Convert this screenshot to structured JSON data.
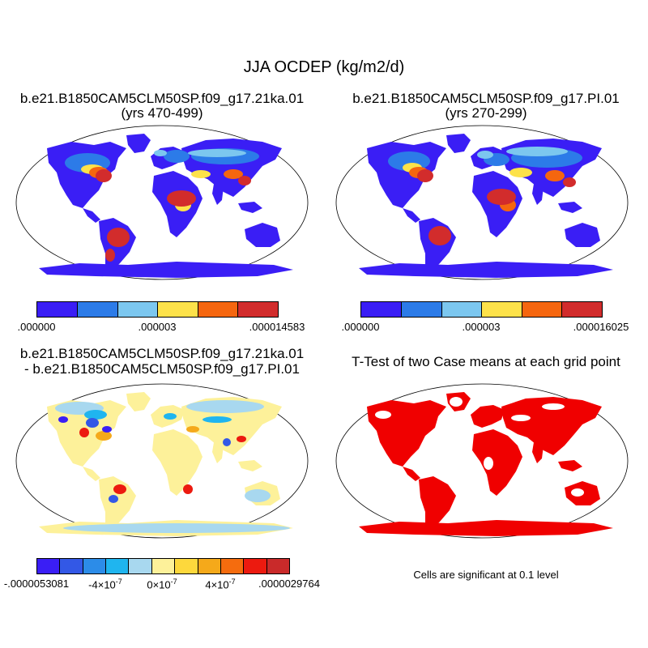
{
  "figure": {
    "title": "JJA OCDEP (kg/m2/d)"
  },
  "panels": [
    {
      "name": "case-a",
      "title_line1": "b.e21.B1850CAM5CLM50SP.f09_g17.21ka.01",
      "title_line2": "(yrs 470-499)",
      "colorbar": {
        "colors": [
          "#3a1ef5",
          "#2c7be8",
          "#7cc7ef",
          "#fde24a",
          "#f5660f",
          "#d22c2c"
        ],
        "labels": [
          ".000000",
          ".000003",
          ".000014583"
        ]
      }
    },
    {
      "name": "case-b",
      "title_line1": "b.e21.B1850CAM5CLM50SP.f09_g17.PI.01",
      "title_line2": "(yrs 270-299)",
      "colorbar": {
        "colors": [
          "#3a1ef5",
          "#2c7be8",
          "#7cc7ef",
          "#fde24a",
          "#f5660f",
          "#d22c2c"
        ],
        "labels": [
          ".000000",
          ".000003",
          ".000016025"
        ]
      }
    },
    {
      "name": "difference",
      "title_line1": "b.e21.B1850CAM5CLM50SP.f09_g17.21ka.01",
      "title_line2": "- b.e21.B1850CAM5CLM50SP.f09_g17.PI.01",
      "colorbar": {
        "colors": [
          "#3a1ef5",
          "#3358e6",
          "#2c8ce8",
          "#1fb5ef",
          "#a8d8ef",
          "#fdf19a",
          "#fdd83c",
          "#f5a91a",
          "#f56c0e",
          "#ec1a0f",
          "#c92a2a"
        ],
        "labels": [
          "-.0000053081",
          "-4×10",
          "0×10",
          "4×10",
          ".0000029764"
        ],
        "exponent": "-7"
      }
    },
    {
      "name": "t-test",
      "title_line1": "T-Test of two Case means at each grid point",
      "note": "Cells are significant at 0.1 level",
      "color": "#f00000"
    }
  ]
}
